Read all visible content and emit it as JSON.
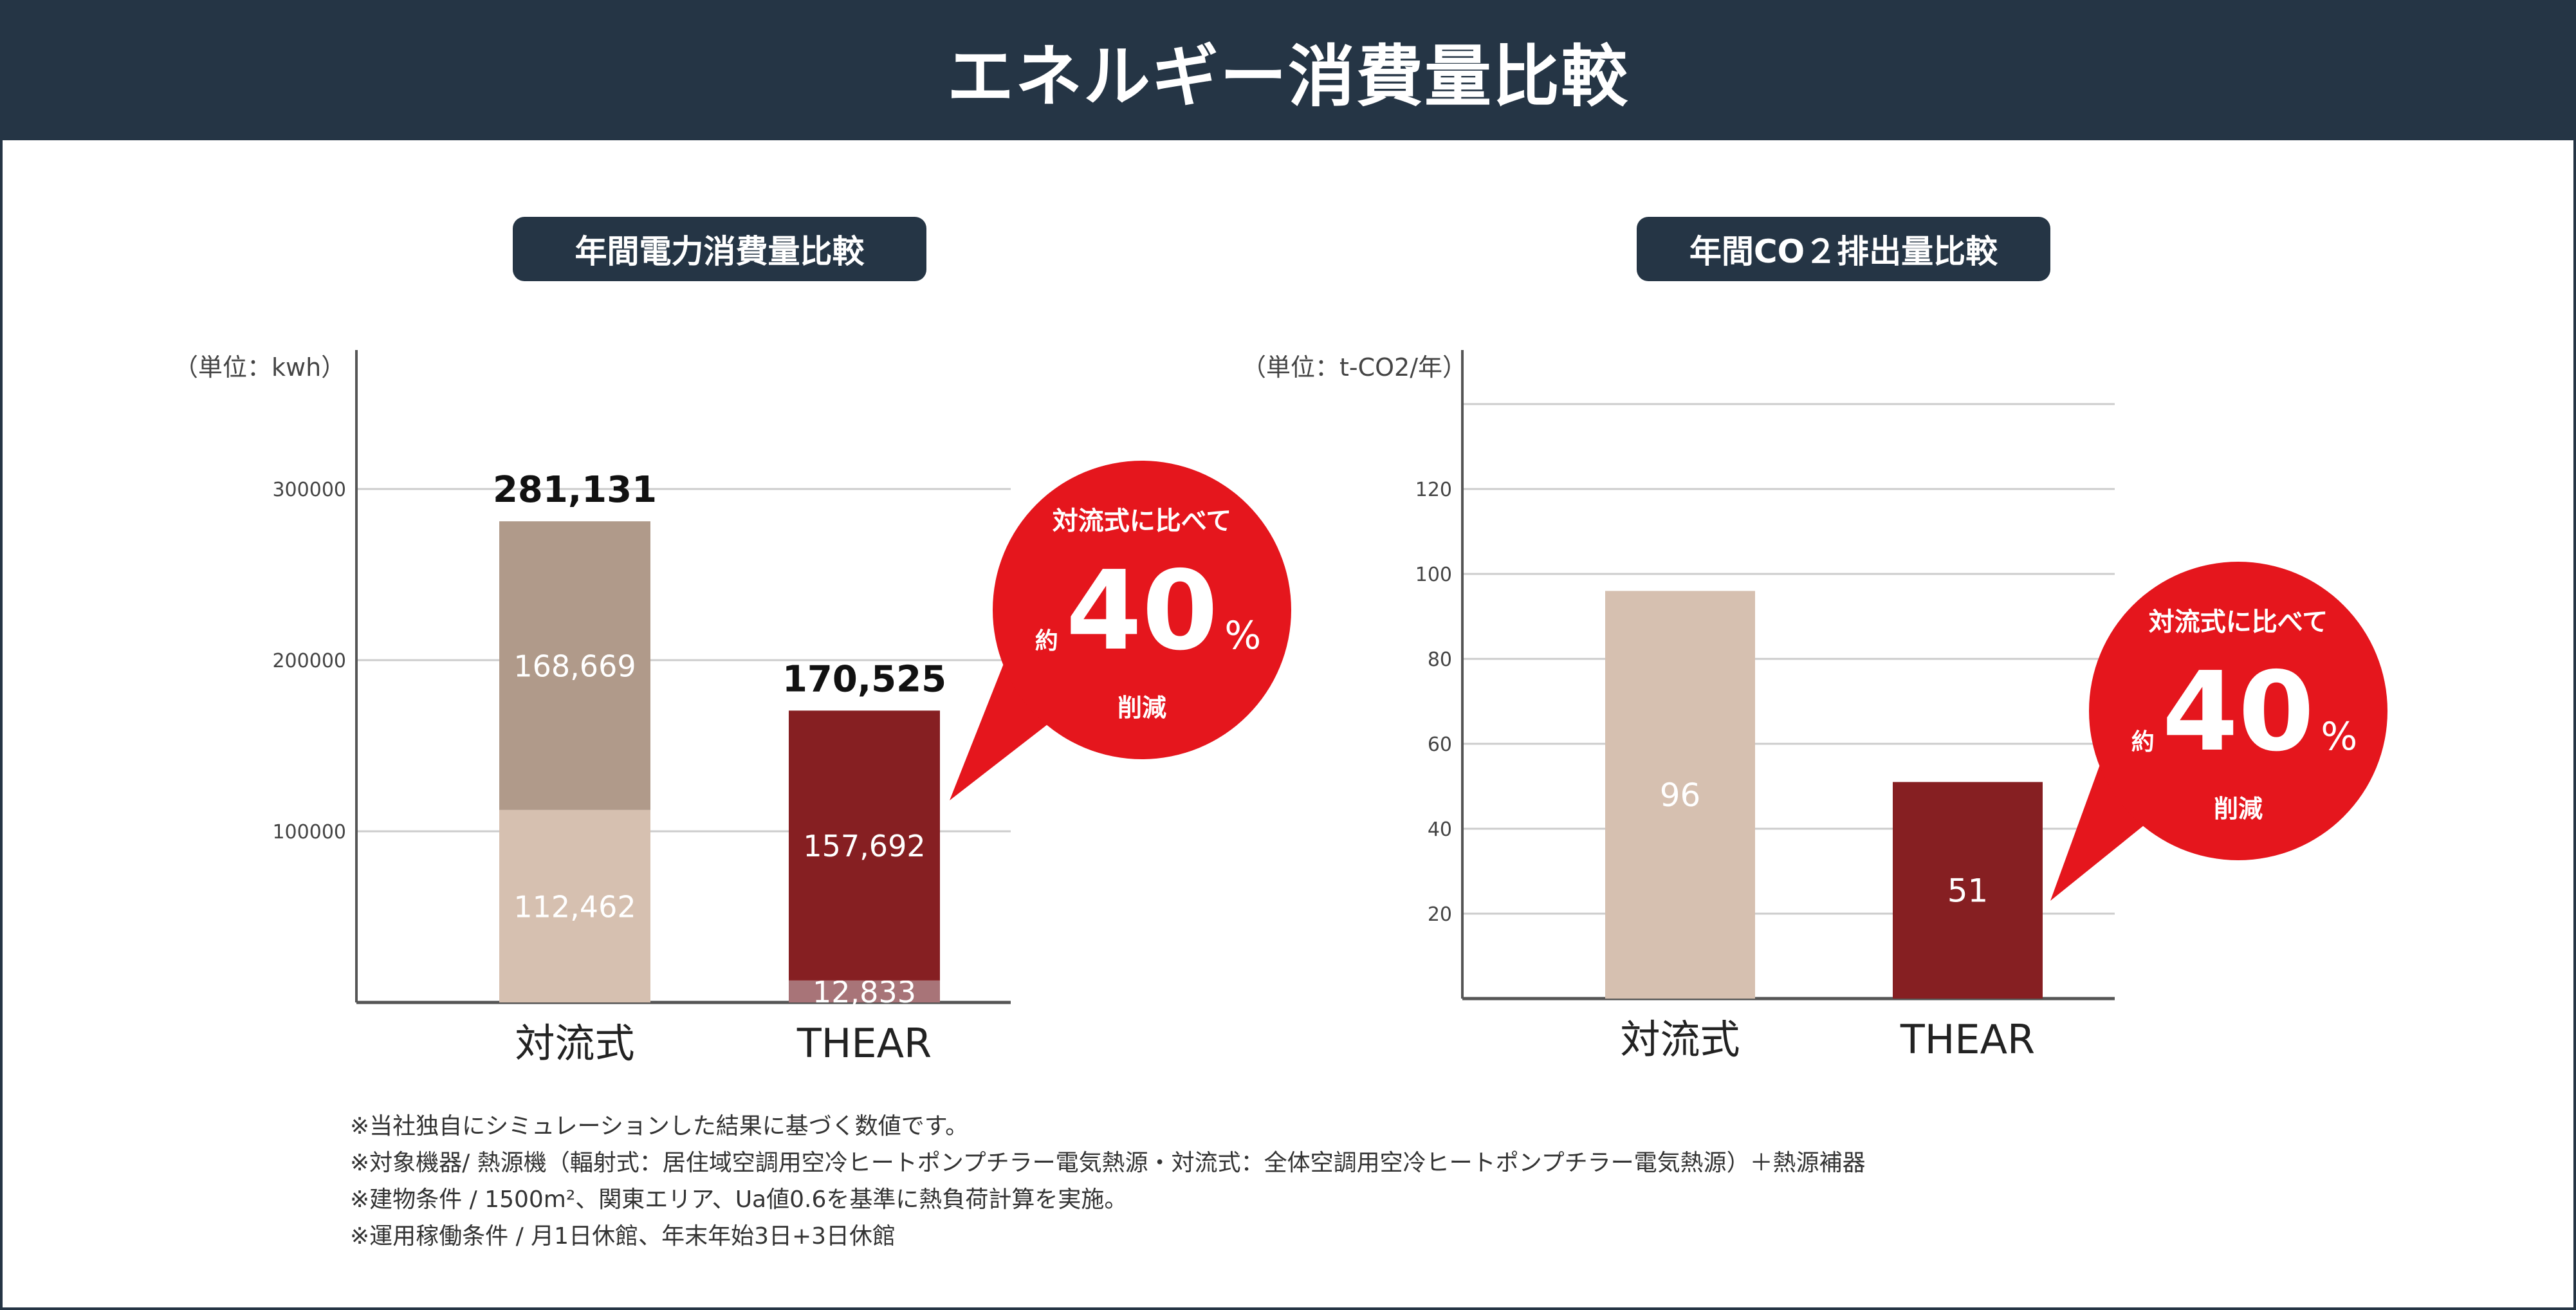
{
  "title": "エネルギー消費量比較",
  "colors": {
    "header": "#253545",
    "conv_low": "#d6c0b0",
    "conv_high": "#b09a8a",
    "thear_high": "#861f22",
    "thear_low": "#a87478",
    "bubble": "#e5161d",
    "grid": "#cccccc",
    "axis": "#555555"
  },
  "chart_data": [
    {
      "type": "bar",
      "stacked": true,
      "title": "年間電力消費量比較",
      "ylabel": "（単位：kwh）",
      "ylim": [
        0,
        350000
      ],
      "yticks": [
        100000,
        200000,
        300000
      ],
      "ytick_labels": [
        "100000",
        "200000",
        "300000"
      ],
      "categories": [
        "対流式",
        "THEAR"
      ],
      "totals": [
        "281,131",
        "170,525"
      ],
      "total_values": [
        281131,
        170525
      ],
      "series": [
        {
          "name": "lower",
          "values": [
            112462,
            12833
          ],
          "labels": [
            "112,462",
            "12,833"
          ]
        },
        {
          "name": "upper",
          "values": [
            168669,
            157692
          ],
          "labels": [
            "168,669",
            "157,692"
          ]
        }
      ],
      "callout": {
        "line1": "対流式に比べて",
        "prefix": "約",
        "number": "40",
        "unit": "%",
        "line3": "削減"
      }
    },
    {
      "type": "bar",
      "title": "年間CO２排出量比較",
      "ylabel": "（単位：t-CO2/年）",
      "ylim": [
        0,
        140
      ],
      "yticks": [
        20,
        40,
        60,
        80,
        100,
        120,
        140
      ],
      "ytick_labels": [
        "20",
        "40",
        "60",
        "80",
        "100",
        "120",
        ""
      ],
      "categories": [
        "対流式",
        "THEAR"
      ],
      "values": [
        96,
        51
      ],
      "labels": [
        "96",
        "51"
      ],
      "callout": {
        "line1": "対流式に比べて",
        "prefix": "約",
        "number": "40",
        "unit": "%",
        "line3": "削減"
      }
    }
  ],
  "notes": [
    "※当社独自にシミュレーションした結果に基づく数値です。",
    "※対象機器/ 熱源機（輻射式：居住域空調用空冷ヒートポンプチラー電気熱源・対流式：全体空調用空冷ヒートポンプチラー電気熱源）＋熱源補器",
    "※建物条件 / 1500m²、関東エリア、Ua値0.6を基準に熱負荷計算を実施。",
    "※運用稼働条件 / 月1日休館、年末年始3日+3日休館"
  ]
}
